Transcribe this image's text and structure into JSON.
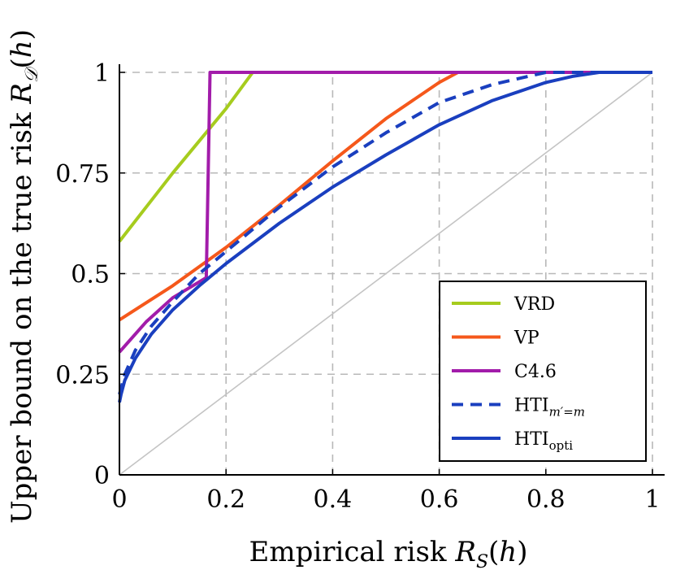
{
  "chart_data": {
    "type": "line",
    "xlabel": "Empirical risk R_S(h)",
    "ylabel": "Upper bound on the true risk R_D(h)",
    "xlim": [
      0,
      1
    ],
    "ylim": [
      0,
      1
    ],
    "xticks": [
      0,
      0.2,
      0.4,
      0.6,
      0.8,
      1
    ],
    "yticks": [
      0,
      0.25,
      0.5,
      0.75,
      1
    ],
    "xtick_labels": [
      "0",
      "0.2",
      "0.4",
      "0.6",
      "0.8",
      "1"
    ],
    "ytick_labels": [
      "0",
      "0.25",
      "0.5",
      "0.75",
      "1"
    ],
    "grid": true,
    "legend_position": "bottom-right",
    "series": [
      {
        "name": "VRD",
        "color": "#a6cc1e",
        "dash": false,
        "x": [
          0,
          0.05,
          0.1,
          0.15,
          0.2,
          0.25
        ],
        "y": [
          0.58,
          0.665,
          0.75,
          0.83,
          0.91,
          1.0
        ]
      },
      {
        "name": "VP",
        "color": "#f5581b",
        "dash": false,
        "x": [
          0,
          0.1,
          0.2,
          0.3,
          0.4,
          0.5,
          0.6,
          0.635
        ],
        "y": [
          0.385,
          0.47,
          0.565,
          0.67,
          0.78,
          0.885,
          0.975,
          1.0
        ]
      },
      {
        "name": "C4.6",
        "color": "#a21caa",
        "dash": false,
        "x": [
          0,
          0.05,
          0.1,
          0.163,
          0.17,
          1.0
        ],
        "y": [
          0.305,
          0.38,
          0.44,
          0.49,
          1.0,
          1.0
        ]
      },
      {
        "name": "HTI",
        "color": "#1a3fbf",
        "dash": true,
        "x": [
          0,
          0.003,
          0.01,
          0.03,
          0.06,
          0.1,
          0.15,
          0.2,
          0.3,
          0.4,
          0.5,
          0.6,
          0.7,
          0.75,
          0.8,
          0.85,
          1.0
        ],
        "y": [
          0.2,
          0.215,
          0.25,
          0.31,
          0.37,
          0.43,
          0.5,
          0.555,
          0.665,
          0.765,
          0.85,
          0.925,
          0.97,
          0.985,
          1.0,
          1.0,
          1.0
        ]
      },
      {
        "name": "HTI",
        "color": "#1a3fbf",
        "dash": false,
        "x": [
          0,
          0.003,
          0.01,
          0.03,
          0.06,
          0.1,
          0.15,
          0.2,
          0.3,
          0.4,
          0.5,
          0.6,
          0.7,
          0.8,
          0.85,
          0.9,
          1.0
        ],
        "y": [
          0.18,
          0.2,
          0.235,
          0.29,
          0.35,
          0.41,
          0.47,
          0.525,
          0.625,
          0.715,
          0.795,
          0.87,
          0.93,
          0.975,
          0.99,
          1.0,
          1.0
        ]
      }
    ],
    "reference_line": {
      "x": [
        0,
        1
      ],
      "y": [
        0,
        1
      ],
      "color": "#c4c4c4"
    }
  }
}
